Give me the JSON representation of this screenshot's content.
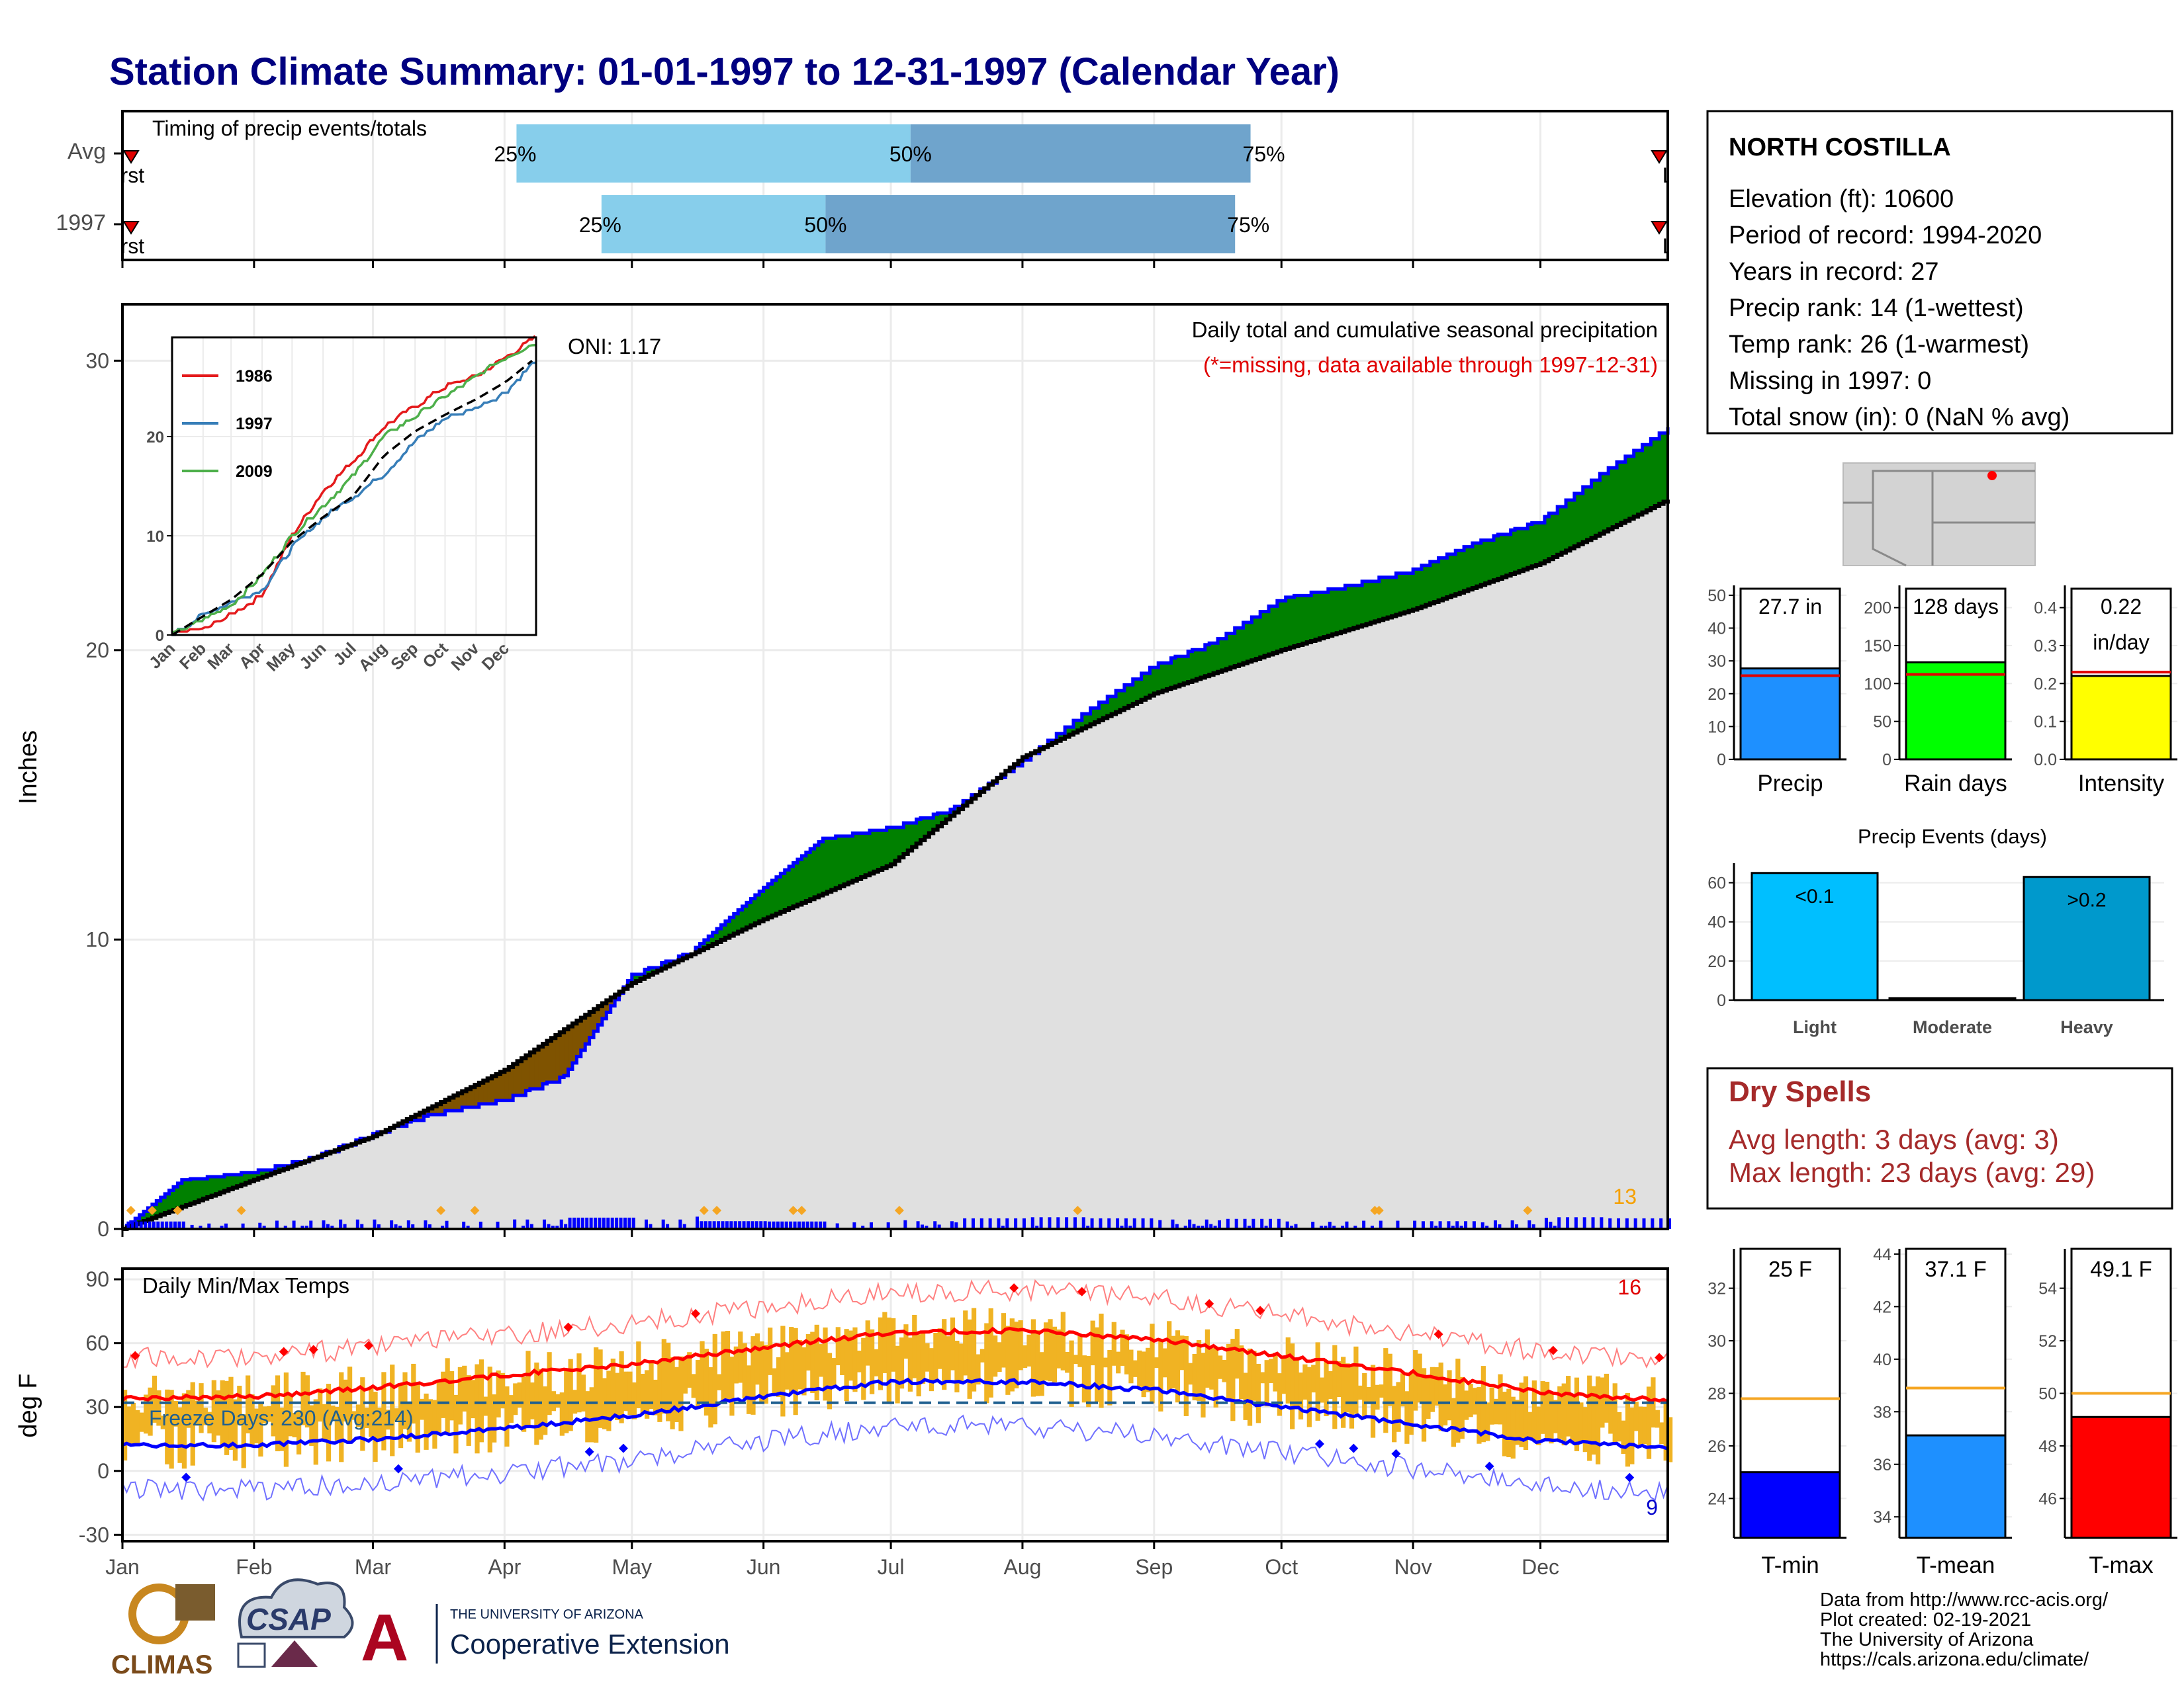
{
  "title": "Station Climate Summary: 01-01-1997 to 12-31-1997 (Calendar Year)",
  "timing": {
    "label": "Timing of precip events/totals",
    "rows": [
      {
        "name": "Avg",
        "q25": 0.255,
        "q50": 0.51,
        "q75": 0.73,
        "q25_label": "25%",
        "q50_label": "50%",
        "q75_label": "75%",
        "first": "First",
        "last": "Last"
      },
      {
        "name": "1997",
        "q25": 0.31,
        "q50": 0.455,
        "q75": 0.72,
        "q25_label": "25%",
        "q50_label": "50%",
        "q75_label": "75%",
        "first": "First",
        "last": "Last"
      }
    ]
  },
  "precip_panel": {
    "ylabel": "Inches",
    "ytick_labels": [
      "0",
      "10",
      "20",
      "30"
    ],
    "subtitle": "Daily total and cumulative seasonal precipitation",
    "missing_note": "(*=missing, data available through 1997-12-31)",
    "oni": "ONI: 1.17",
    "count_label": "13",
    "colors": {
      "above": "#008000",
      "below": "#7f5300",
      "obs": "#0000ff",
      "avg_fill": "#e0e0e0"
    }
  },
  "inset": {
    "ytick_labels": [
      "0",
      "10",
      "20"
    ],
    "month_labels": [
      "Jan",
      "Feb",
      "Mar",
      "Apr",
      "May",
      "Jun",
      "Jul",
      "Aug",
      "Sep",
      "Oct",
      "Nov",
      "Dec"
    ],
    "legend": [
      {
        "name": "1986",
        "color": "#e41a1c"
      },
      {
        "name": "1997",
        "color": "#377eb8"
      },
      {
        "name": "2009",
        "color": "#4daf4a"
      }
    ]
  },
  "temp_panel": {
    "ylabel": "deg F",
    "ytick_labels": [
      "90",
      "60",
      "30",
      "0",
      "-30"
    ],
    "title": "Daily Min/Max Temps",
    "freeze_label": "Freeze Days: 230 (Avg:214)",
    "max_count": "16",
    "min_count": "9"
  },
  "months": [
    "Jan",
    "Feb",
    "Mar",
    "Apr",
    "May",
    "Jun",
    "Jul",
    "Aug",
    "Sep",
    "Oct",
    "Nov",
    "Dec"
  ],
  "station": {
    "name": "NORTH COSTILLA",
    "lines": [
      "Elevation (ft): 10600",
      "Period of record: 1994-2020",
      "Years in record: 27",
      "Precip rank: 14 (1-wettest)",
      "Temp rank: 26 (1-warmest)",
      "Missing in 1997: 0",
      "Total snow (in): 0 (NaN % avg)"
    ]
  },
  "bar_stats": {
    "precip": {
      "label": "Precip",
      "value_label": "27.7 in",
      "ytick_labels": [
        "0",
        "10",
        "20",
        "30",
        "40",
        "50"
      ],
      "color": "#1e90ff"
    },
    "rain_days": {
      "label": "Rain days",
      "value_label": "128 days",
      "ytick_labels": [
        "0",
        "50",
        "100",
        "150",
        "200"
      ],
      "color": "#00ff00"
    },
    "intensity": {
      "label": "Intensity",
      "value_label": "0.22",
      "value_unit": "in/day",
      "ytick_labels": [
        "0.0",
        "0.1",
        "0.2",
        "0.3",
        "0.4"
      ],
      "color": "#ffff00"
    }
  },
  "events": {
    "title": "Precip Events (days)",
    "ytick_labels": [
      "0",
      "20",
      "40",
      "60"
    ],
    "bars": [
      {
        "label": "Light",
        "value": 65,
        "value_label": "<0.1",
        "color": "#00bfff"
      },
      {
        "label": "Moderate",
        "value": 0,
        "value_label": "",
        "color": "#1e90ff"
      },
      {
        "label": "Heavy",
        "value": 63,
        "value_label": ">0.2",
        "color": "#0099cc"
      }
    ]
  },
  "dry_spells": {
    "title": "Dry Spells",
    "avg": "Avg length: 3 days (avg: 3)",
    "max": "Max length: 23 days (avg: 29)"
  },
  "temp_stats": {
    "tmin": {
      "label": "T-min",
      "value_label": "25 F",
      "ytick_labels": [
        "24",
        "26",
        "28",
        "30",
        "32"
      ],
      "color": "#0000ff"
    },
    "tmean": {
      "label": "T-mean",
      "value_label": "37.1 F",
      "ytick_labels": [
        "34",
        "36",
        "38",
        "40",
        "42",
        "44"
      ],
      "color": "#1e90ff"
    },
    "tmax": {
      "label": "T-max",
      "value_label": "49.1 F",
      "ytick_labels": [
        "46",
        "48",
        "50",
        "52",
        "54"
      ],
      "color": "#ff0000"
    }
  },
  "footer": {
    "lines": [
      "Data from http://www.rcc-acis.org/",
      "Plot created: 02-19-2021",
      "The University of Arizona",
      "https://cals.arizona.edu/climate/"
    ],
    "logo_climas": "CLIMAS",
    "logo_csap": "CSAP",
    "logo_ua_small": "THE UNIVERSITY OF ARIZONA",
    "logo_ua_big": "Cooperative Extension"
  },
  "chart_data": [
    {
      "type": "area",
      "name": "cumulative precipitation",
      "xlim": [
        "1997-01-01",
        "1997-12-31"
      ],
      "ylim": [
        0,
        30
      ],
      "ylabel": "Inches",
      "cumulative_1997": {
        "x": [
          "1997-01-01",
          "1997-01-15",
          "1997-02-01",
          "1997-02-15",
          "1997-03-01",
          "1997-03-15",
          "1997-04-01",
          "1997-04-15",
          "1997-05-01",
          "1997-05-15",
          "1997-06-01",
          "1997-06-15",
          "1997-07-01",
          "1997-07-15",
          "1997-08-01",
          "1997-08-15",
          "1997-09-01",
          "1997-09-15",
          "1997-10-01",
          "1997-10-15",
          "1997-11-01",
          "1997-11-15",
          "1997-12-01",
          "1997-12-15",
          "1997-12-31"
        ],
        "y": [
          0.0,
          1.7,
          2.0,
          2.5,
          3.3,
          4.0,
          4.5,
          5.3,
          8.8,
          9.6,
          11.8,
          13.5,
          13.9,
          14.5,
          16.2,
          17.8,
          19.5,
          20.3,
          21.8,
          22.2,
          22.8,
          23.7,
          24.5,
          26.1,
          27.7
        ]
      },
      "average": {
        "x": [
          "1997-01-01",
          "1997-02-01",
          "1997-03-01",
          "1997-04-01",
          "1997-05-01",
          "1997-06-01",
          "1997-07-01",
          "1997-08-01",
          "1997-09-01",
          "1997-10-01",
          "1997-11-01",
          "1997-12-01",
          "1997-12-31"
        ],
        "y": [
          0.0,
          1.7,
          3.2,
          5.5,
          8.5,
          10.7,
          12.6,
          16.3,
          18.5,
          20.0,
          21.4,
          23.0,
          25.2
        ]
      }
    },
    {
      "type": "line",
      "name": "inset cumulative comparison",
      "xlim": [
        "1997-01-01",
        "1997-12-31"
      ],
      "ylim": [
        0,
        30
      ],
      "x": [
        "1997-01-01",
        "1997-02-01",
        "1997-03-01",
        "1997-04-01",
        "1997-05-01",
        "1997-06-01",
        "1997-07-01",
        "1997-08-01",
        "1997-09-01",
        "1997-10-01",
        "1997-11-01",
        "1997-12-01",
        "1997-12-31"
      ],
      "series": [
        {
          "name": "1986",
          "values": [
            0.0,
            0.5,
            2.0,
            4.0,
            10.0,
            14.5,
            17.5,
            21.0,
            23.0,
            25.0,
            26.0,
            28.0,
            30.0
          ]
        },
        {
          "name": "1997",
          "values": [
            0.0,
            2.0,
            3.3,
            4.5,
            8.8,
            11.8,
            13.9,
            16.2,
            19.5,
            21.8,
            22.8,
            24.5,
            27.7
          ]
        },
        {
          "name": "2009",
          "values": [
            0.0,
            1.5,
            3.0,
            6.0,
            10.0,
            13.0,
            16.0,
            20.0,
            22.0,
            24.0,
            26.0,
            28.0,
            29.5
          ]
        }
      ]
    },
    {
      "type": "line",
      "name": "daily temperatures",
      "xlim": [
        "1997-01-01",
        "1997-12-31"
      ],
      "ylim": [
        -30,
        95
      ],
      "ylabel": "deg F",
      "avg_max": {
        "x": [
          "1997-01-01",
          "1997-02-01",
          "1997-03-01",
          "1997-04-01",
          "1997-05-01",
          "1997-06-01",
          "1997-07-01",
          "1997-08-01",
          "1997-09-01",
          "1997-10-01",
          "1997-11-01",
          "1997-12-01",
          "1997-12-31"
        ],
        "y": [
          34,
          35,
          39,
          45,
          50,
          58,
          65,
          66,
          62,
          54,
          46,
          37,
          33
        ]
      },
      "avg_min": {
        "x": [
          "1997-01-01",
          "1997-02-01",
          "1997-03-01",
          "1997-04-01",
          "1997-05-01",
          "1997-06-01",
          "1997-07-01",
          "1997-08-01",
          "1997-09-01",
          "1997-10-01",
          "1997-11-01",
          "1997-12-01",
          "1997-12-31"
        ],
        "y": [
          12,
          12,
          15,
          20,
          26,
          35,
          42,
          42,
          38,
          30,
          22,
          14,
          11
        ]
      },
      "freeze_line": 32
    },
    {
      "type": "bar",
      "categories": [
        "Precip",
        "Rain days",
        "Intensity"
      ],
      "series": [
        {
          "name": "1997",
          "values": [
            27.7,
            128,
            0.22
          ]
        }
      ],
      "averages": [
        25.5,
        112,
        0.23
      ]
    },
    {
      "type": "bar",
      "title": "Precip Events (days)",
      "categories": [
        "Light",
        "Moderate",
        "Heavy"
      ],
      "values": [
        65,
        0,
        63
      ],
      "ylim": [
        0,
        70
      ]
    },
    {
      "type": "bar",
      "categories": [
        "T-min",
        "T-mean",
        "T-max"
      ],
      "series": [
        {
          "name": "1997",
          "values": [
            25,
            37.1,
            49.1
          ]
        }
      ],
      "averages": [
        27.8,
        38.9,
        50.0
      ]
    }
  ]
}
